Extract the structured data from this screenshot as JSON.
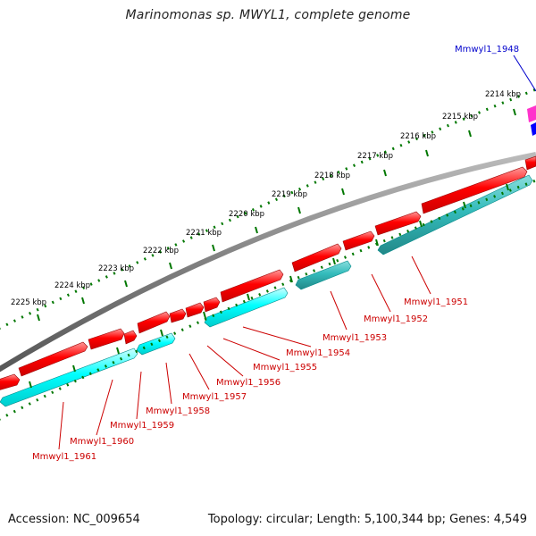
{
  "title": "Marinomonas sp. MWYL1, complete genome",
  "footer": {
    "accession": "Accession: NC_009654",
    "topology": "Topology: circular; Length: 5,100,344 bp; Genes: 4,549"
  },
  "colors": {
    "backbone": "#7f7f7f",
    "forward_cds": "#ff0000",
    "reverse_cds": "#00ffff",
    "ticks": "#007700",
    "forward_label": "#cc0000",
    "highlight_label": "#0000cc",
    "pink_gene": "#ff33cc",
    "blue_gene": "#0000ff"
  },
  "scale_ticks": [
    "2214 kbp",
    "2215 kbp",
    "2216 kbp",
    "2217 kbp",
    "2218 kbp",
    "2219 kbp",
    "2220 kbp",
    "2221 kbp",
    "2222 kbp",
    "2223 kbp",
    "2224 kbp",
    "2225 kbp"
  ],
  "gene_labels": [
    "Mmwyl1_1948",
    "Mmwyl1_1951",
    "Mmwyl1_1952",
    "Mmwyl1_1953",
    "Mmwyl1_1954",
    "Mmwyl1_1955",
    "Mmwyl1_1956",
    "Mmwyl1_1957",
    "Mmwyl1_1958",
    "Mmwyl1_1959",
    "Mmwyl1_1960",
    "Mmwyl1_1961"
  ]
}
